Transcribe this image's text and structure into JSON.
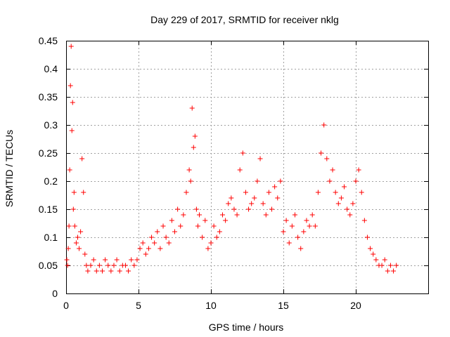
{
  "chart_data": {
    "type": "scatter",
    "title": "Day 229 of 2017, SRMTID for receiver nklg",
    "xlabel": "GPS time / hours",
    "ylabel": "SRMTID / TECUs",
    "xlim": [
      0,
      25
    ],
    "ylim": [
      0,
      0.45
    ],
    "x_ticks": [
      0,
      5,
      10,
      15,
      20
    ],
    "x_tick_labels": [
      "0",
      "5",
      "10",
      "15",
      "20"
    ],
    "y_ticks": [
      0,
      0.05,
      0.1,
      0.15,
      0.2,
      0.25,
      0.3,
      0.35,
      0.4,
      0.45
    ],
    "y_tick_labels": [
      "0",
      "0.05",
      "0.1",
      "0.15",
      "0.2",
      "0.25",
      "0.3",
      "0.35",
      "0.4",
      "0.45"
    ],
    "grid": true,
    "marker": "+",
    "marker_color": "#ff0000",
    "series": [
      {
        "name": "SRMTID",
        "x": [
          0.05,
          0.1,
          0.15,
          0.2,
          0.25,
          0.3,
          0.35,
          0.4,
          0.45,
          0.5,
          0.55,
          0.6,
          0.7,
          0.8,
          0.9,
          1.0,
          1.1,
          1.2,
          1.3,
          1.4,
          1.5,
          1.7,
          1.9,
          2.1,
          2.3,
          2.5,
          2.7,
          2.9,
          3.1,
          3.3,
          3.5,
          3.7,
          3.9,
          4.1,
          4.3,
          4.5,
          4.7,
          4.9,
          5.1,
          5.3,
          5.5,
          5.7,
          5.9,
          6.1,
          6.3,
          6.5,
          6.7,
          6.9,
          7.1,
          7.3,
          7.5,
          7.7,
          7.9,
          8.1,
          8.3,
          8.5,
          8.6,
          8.7,
          8.8,
          8.9,
          9.0,
          9.1,
          9.2,
          9.4,
          9.6,
          9.8,
          10.0,
          10.2,
          10.4,
          10.6,
          10.8,
          11.0,
          11.2,
          11.4,
          11.6,
          11.8,
          12.0,
          12.2,
          12.4,
          12.6,
          12.8,
          13.0,
          13.2,
          13.4,
          13.6,
          13.8,
          14.0,
          14.2,
          14.4,
          14.6,
          14.8,
          15.0,
          15.2,
          15.4,
          15.6,
          15.8,
          16.0,
          16.2,
          16.4,
          16.6,
          16.8,
          17.0,
          17.2,
          17.4,
          17.6,
          17.8,
          18.0,
          18.2,
          18.4,
          18.6,
          18.8,
          19.0,
          19.2,
          19.4,
          19.6,
          19.8,
          20.0,
          20.2,
          20.4,
          20.6,
          20.8,
          21.0,
          21.2,
          21.4,
          21.6,
          21.8,
          22.0,
          22.2,
          22.4,
          22.6,
          22.8
        ],
        "y": [
          0.06,
          0.05,
          0.08,
          0.12,
          0.22,
          0.37,
          0.44,
          0.29,
          0.34,
          0.15,
          0.18,
          0.12,
          0.09,
          0.1,
          0.08,
          0.11,
          0.24,
          0.18,
          0.07,
          0.05,
          0.04,
          0.05,
          0.06,
          0.04,
          0.05,
          0.04,
          0.06,
          0.05,
          0.04,
          0.05,
          0.06,
          0.04,
          0.05,
          0.05,
          0.04,
          0.06,
          0.05,
          0.06,
          0.08,
          0.09,
          0.07,
          0.08,
          0.1,
          0.09,
          0.11,
          0.08,
          0.12,
          0.1,
          0.09,
          0.13,
          0.11,
          0.15,
          0.12,
          0.14,
          0.18,
          0.22,
          0.2,
          0.33,
          0.26,
          0.28,
          0.15,
          0.12,
          0.14,
          0.1,
          0.13,
          0.08,
          0.09,
          0.12,
          0.1,
          0.11,
          0.14,
          0.13,
          0.16,
          0.17,
          0.15,
          0.14,
          0.22,
          0.25,
          0.18,
          0.15,
          0.16,
          0.17,
          0.2,
          0.24,
          0.16,
          0.14,
          0.18,
          0.15,
          0.19,
          0.17,
          0.2,
          0.11,
          0.13,
          0.09,
          0.12,
          0.14,
          0.1,
          0.08,
          0.11,
          0.13,
          0.12,
          0.14,
          0.12,
          0.18,
          0.25,
          0.3,
          0.24,
          0.2,
          0.22,
          0.18,
          0.16,
          0.17,
          0.19,
          0.15,
          0.14,
          0.16,
          0.2,
          0.22,
          0.18,
          0.13,
          0.1,
          0.08,
          0.07,
          0.06,
          0.05,
          0.05,
          0.06,
          0.04,
          0.05,
          0.04,
          0.05
        ]
      }
    ]
  }
}
